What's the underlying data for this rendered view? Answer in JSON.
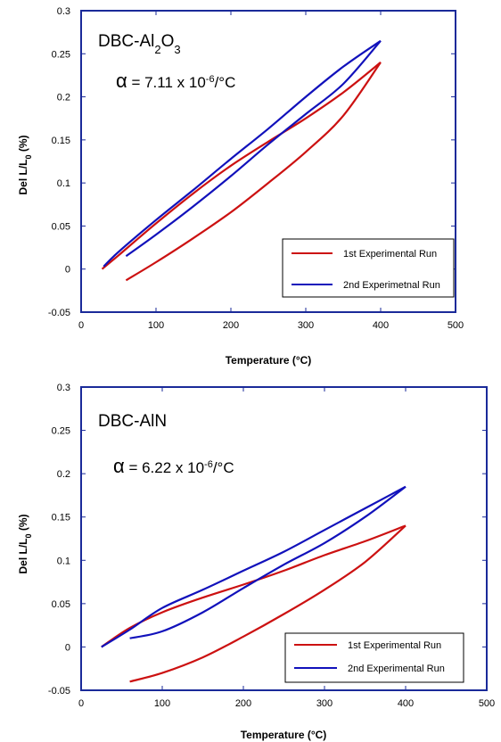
{
  "chart_data": [
    {
      "type": "line",
      "title_main": "DBC-Al",
      "title_sub1": "2",
      "title_mid": "O",
      "title_sub2": "3",
      "alpha_symbol": "α",
      "alpha_text": " = 7.11 x 10",
      "alpha_exp": "-6",
      "alpha_unit": "/°C",
      "xlabel": "Temperature (°C)",
      "ylabel_main": "Del L/L",
      "ylabel_sub": "0",
      "ylabel_unit": " (%)",
      "xlim": [
        0,
        500
      ],
      "ylim": [
        -0.05,
        0.3
      ],
      "xticks": [
        "0",
        "100",
        "200",
        "300",
        "400",
        "500"
      ],
      "yticks": [
        "-0.05",
        "0",
        "0.05",
        "0.1",
        "0.15",
        "0.2",
        "0.25",
        "0.3"
      ],
      "legend_position": "bottom-right",
      "series": [
        {
          "name": "1st Experimental Run",
          "color": "#cc1111",
          "segments": [
            {
              "x": [
                60,
                100,
                150,
                200,
                250,
                300,
                350,
                400
              ],
              "y": [
                -0.013,
                0.008,
                0.036,
                0.066,
                0.1,
                0.136,
                0.178,
                0.24
              ]
            },
            {
              "x": [
                400,
                350,
                300,
                250,
                200,
                150,
                100,
                50,
                28
              ],
              "y": [
                0.24,
                0.205,
                0.175,
                0.148,
                0.12,
                0.088,
                0.053,
                0.016,
                0.0
              ]
            }
          ]
        },
        {
          "name": "2nd Experimetnal Run",
          "color": "#1111bb",
          "segments": [
            {
              "x": [
                60,
                100,
                150,
                200,
                250,
                300,
                350,
                400
              ],
              "y": [
                0.015,
                0.04,
                0.073,
                0.108,
                0.145,
                0.18,
                0.215,
                0.265
              ]
            },
            {
              "x": [
                400,
                350,
                300,
                250,
                200,
                150,
                100,
                50,
                30
              ],
              "y": [
                0.265,
                0.235,
                0.2,
                0.163,
                0.128,
                0.092,
                0.057,
                0.02,
                0.003
              ]
            }
          ]
        }
      ]
    },
    {
      "type": "line",
      "title_main": "DBC-AlN",
      "alpha_symbol": "α",
      "alpha_text": " = 6.22 x 10",
      "alpha_exp": "-6",
      "alpha_unit": "/°C",
      "xlabel": "Temperature (°C)",
      "ylabel_main": "Del L/L",
      "ylabel_sub": "0",
      "ylabel_unit": " (%)",
      "xlim": [
        0,
        500
      ],
      "ylim": [
        -0.05,
        0.3
      ],
      "xticks": [
        "0",
        "100",
        "200",
        "300",
        "400",
        "500"
      ],
      "yticks": [
        "-0.05",
        "0",
        "0.05",
        "0.1",
        "0.15",
        "0.2",
        "0.25",
        "0.3"
      ],
      "legend_position": "bottom-right",
      "series": [
        {
          "name": "1st Experimental Run",
          "color": "#cc1111",
          "segments": [
            {
              "x": [
                60,
                100,
                150,
                200,
                250,
                300,
                350,
                400
              ],
              "y": [
                -0.04,
                -0.03,
                -0.012,
                0.012,
                0.038,
                0.066,
                0.098,
                0.14
              ]
            },
            {
              "x": [
                400,
                350,
                300,
                250,
                200,
                150,
                100,
                60,
                25
              ],
              "y": [
                0.14,
                0.122,
                0.106,
                0.088,
                0.072,
                0.057,
                0.04,
                0.022,
                0.0
              ]
            }
          ]
        },
        {
          "name": "2nd Experimental Run",
          "color": "#1111bb",
          "segments": [
            {
              "x": [
                60,
                100,
                150,
                200,
                250,
                300,
                350,
                400
              ],
              "y": [
                0.01,
                0.018,
                0.04,
                0.068,
                0.095,
                0.12,
                0.15,
                0.185
              ]
            },
            {
              "x": [
                400,
                350,
                300,
                250,
                200,
                150,
                100,
                60,
                25
              ],
              "y": [
                0.185,
                0.16,
                0.135,
                0.11,
                0.088,
                0.066,
                0.045,
                0.02,
                0.0
              ]
            }
          ]
        }
      ]
    }
  ]
}
